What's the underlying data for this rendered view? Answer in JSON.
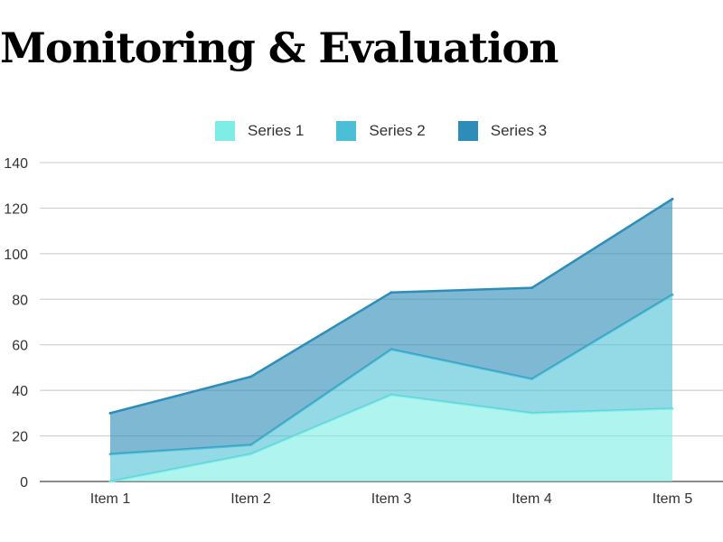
{
  "title": "Monitoring & Evaluation",
  "chart_data": {
    "type": "area",
    "stacked": true,
    "categories": [
      "Item 1",
      "Item 2",
      "Item 3",
      "Item 4",
      "Item 5"
    ],
    "series": [
      {
        "name": "Series 1",
        "values": [
          0,
          12,
          38,
          30,
          32
        ],
        "color": "#7EEDE5"
      },
      {
        "name": "Series 2",
        "values": [
          12,
          4,
          20,
          15,
          50
        ],
        "color": "#4BBFD6"
      },
      {
        "name": "Series 3",
        "values": [
          18,
          30,
          25,
          40,
          42
        ],
        "color": "#2E8DB8"
      }
    ],
    "ylim": [
      0,
      140
    ],
    "yticks": [
      0,
      20,
      40,
      60,
      80,
      100,
      120,
      140
    ],
    "grid": true,
    "legend": "top-center",
    "xlabel": "",
    "ylabel": ""
  }
}
